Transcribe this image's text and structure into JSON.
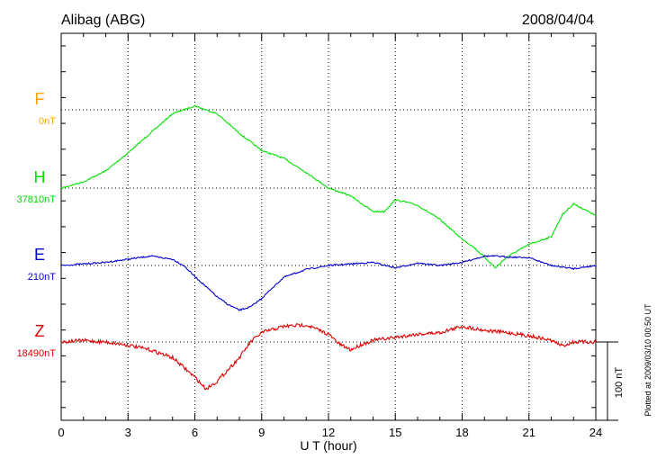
{
  "header": {
    "station": "Alibag (ABG)",
    "date": "2008/04/04"
  },
  "footer": {
    "plotted_note": "Plotted at 2009/03/10 00:50 UT",
    "scale_label": "100 nT"
  },
  "chart_data": {
    "type": "line",
    "title": "Alibag (ABG)",
    "date": "2008/04/04",
    "xlabel": "U T (hour)",
    "xlim": [
      0,
      24
    ],
    "xticks": [
      "0",
      "3",
      "6",
      "9",
      "12",
      "15",
      "18",
      "21",
      "24"
    ],
    "grid": true,
    "series": [
      {
        "name": "F",
        "baseline_label": "0nT",
        "color": "#ffa500",
        "x": [],
        "y": []
      },
      {
        "name": "H",
        "baseline_label": "37810nT",
        "color": "#00e000",
        "x": [
          0,
          1,
          2,
          3,
          4,
          5,
          6,
          7,
          8,
          9,
          10,
          11,
          12,
          13,
          14,
          14.5,
          15,
          15.5,
          16,
          17,
          18,
          18.5,
          19,
          19.5,
          20,
          21,
          22,
          22.5,
          23,
          24
        ],
        "y": [
          37810,
          37818,
          37832,
          37855,
          37880,
          37905,
          37915,
          37905,
          37880,
          37858,
          37848,
          37830,
          37810,
          37800,
          37780,
          37780,
          37795,
          37792,
          37788,
          37770,
          37745,
          37735,
          37722,
          37708,
          37722,
          37738,
          37748,
          37776,
          37790,
          37775
        ]
      },
      {
        "name": "E",
        "baseline_label": "210nT",
        "color": "#0000cc",
        "x": [
          0,
          1,
          2,
          3,
          4,
          5,
          5.5,
          6,
          6.5,
          7,
          7.5,
          8,
          8.5,
          9,
          9.5,
          10,
          11,
          12,
          13,
          14,
          15,
          16,
          17,
          18,
          19,
          19.5,
          20,
          21,
          22,
          23,
          24
        ],
        "y": [
          210,
          212,
          214,
          218,
          222,
          218,
          210,
          196,
          183,
          170,
          160,
          153,
          157,
          168,
          182,
          195,
          205,
          210,
          212,
          214,
          207,
          213,
          210,
          214,
          222,
          222,
          221,
          220,
          210,
          206,
          210
        ]
      },
      {
        "name": "Z",
        "baseline_label": "18490nT",
        "color": "#dd0000",
        "x": [
          0,
          1,
          2,
          3,
          4,
          5,
          6,
          6.5,
          7,
          7.5,
          8,
          8.5,
          9,
          10,
          11,
          12,
          12.5,
          13,
          13.5,
          14,
          15,
          16,
          17,
          18,
          19,
          20,
          21,
          22,
          22.5,
          23,
          24
        ],
        "y": [
          18490,
          18492,
          18490,
          18486,
          18480,
          18470,
          18445,
          18430,
          18440,
          18455,
          18470,
          18490,
          18502,
          18510,
          18512,
          18500,
          18487,
          18480,
          18487,
          18492,
          18496,
          18500,
          18502,
          18510,
          18505,
          18502,
          18498,
          18492,
          18485,
          18490,
          18490
        ]
      }
    ]
  }
}
